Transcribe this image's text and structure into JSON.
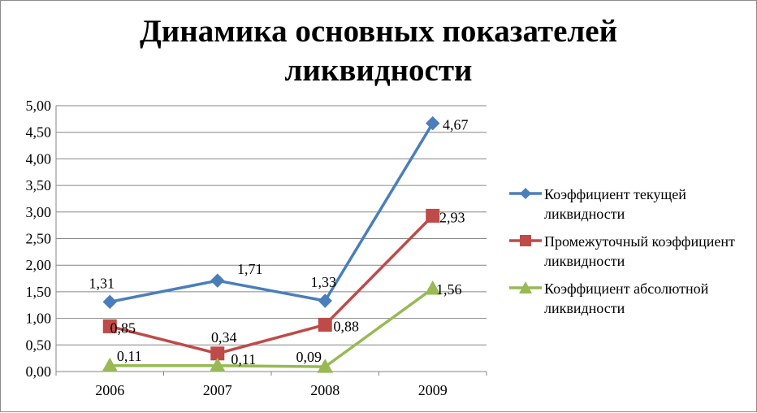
{
  "chart_data": {
    "type": "line",
    "title": "Динамика основных показателей ликвидности",
    "categories": [
      "2006",
      "2007",
      "2008",
      "2009"
    ],
    "ylim": [
      0,
      5
    ],
    "ytick_labels": [
      "0,00",
      "0,50",
      "1,00",
      "1,50",
      "2,00",
      "2,50",
      "3,00",
      "3,50",
      "4,00",
      "4,50",
      "5,00"
    ],
    "grid": true,
    "legend_position": "right",
    "series": [
      {
        "name": "Коэффициент текущей ликвидности",
        "values": [
          1.31,
          1.71,
          1.33,
          4.67
        ],
        "labels": [
          "1,31",
          "1,71",
          "1,33",
          "4,67"
        ],
        "color": "#4a7ebb",
        "marker": "diamond"
      },
      {
        "name": "Промежуточный коэффициент ликвидности",
        "values": [
          0.85,
          0.34,
          0.88,
          2.93
        ],
        "labels": [
          "0,85",
          "0,34",
          "0,88",
          "2,93"
        ],
        "color": "#be4b48",
        "marker": "square"
      },
      {
        "name": "Коэффициент абсолютной ликвидности",
        "values": [
          0.11,
          0.11,
          0.09,
          1.56
        ],
        "labels": [
          "0,11",
          "0,11",
          "0,09",
          "1,56"
        ],
        "color": "#98b954",
        "marker": "triangle"
      }
    ]
  }
}
